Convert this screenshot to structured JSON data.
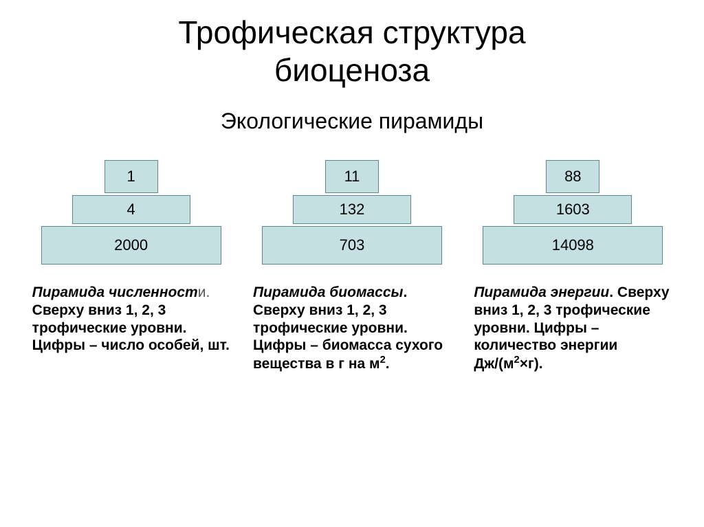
{
  "title_line1": "Трофическая структура",
  "title_line2": "биоценоза",
  "subtitle": "Экологические пирамиды",
  "colors": {
    "block_fill": "#c5e0e3",
    "block_border": "#5a8a8f",
    "background": "#ffffff",
    "text": "#000000",
    "tail_text": "#555555"
  },
  "pyramids": [
    {
      "levels": [
        "1",
        "4",
        "2000"
      ],
      "caption_name_main": "Пирамида численност",
      "caption_name_tail": "и.",
      "caption_rest": " Сверху вниз 1, 2, 3 трофические уровни. Цифры – число особей, шт."
    },
    {
      "levels": [
        "11",
        "132",
        "703"
      ],
      "caption_name_main": "Пирамида биомассы",
      "caption_name_tail": ".",
      "caption_rest_pre": " Сверху вниз 1, 2, 3 трофические уровни. Цифры – биомасса сухого вещества в г на м",
      "caption_rest_sup": "2",
      "caption_rest_post": "."
    },
    {
      "levels": [
        "88",
        "1603",
        "14098"
      ],
      "caption_name_main": "Пирамида энергии",
      "caption_name_tail": ".",
      "caption_rest_pre": " Сверху вниз 1, 2, 3 трофические уровни. Цифры – количество энергии Дж/(м",
      "caption_rest_sup": "2",
      "caption_rest_post": "×г)."
    }
  ]
}
